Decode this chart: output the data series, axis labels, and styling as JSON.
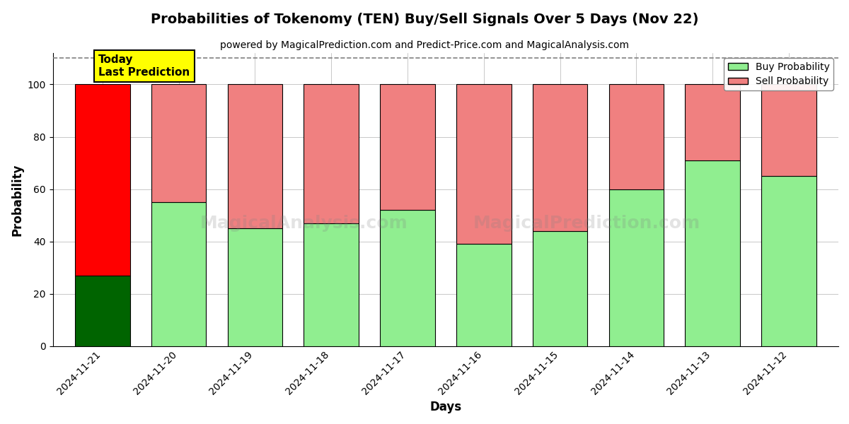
{
  "title": "Probabilities of Tokenomy (TEN) Buy/Sell Signals Over 5 Days (Nov 22)",
  "subtitle": "powered by MagicalPrediction.com and Predict-Price.com and MagicalAnalysis.com",
  "xlabel": "Days",
  "ylabel": "Probability",
  "categories": [
    "2024-11-21",
    "2024-11-20",
    "2024-11-19",
    "2024-11-18",
    "2024-11-17",
    "2024-11-16",
    "2024-11-15",
    "2024-11-14",
    "2024-11-13",
    "2024-11-12"
  ],
  "buy_values": [
    27,
    55,
    45,
    47,
    52,
    39,
    44,
    60,
    71,
    65
  ],
  "sell_values": [
    73,
    45,
    55,
    53,
    48,
    61,
    56,
    40,
    29,
    35
  ],
  "buy_color_special": "#006400",
  "sell_color_special": "#ff0000",
  "buy_color_normal": "#90ee90",
  "sell_color_normal": "#f08080",
  "today_label": "Today\nLast Prediction",
  "today_bg": "#ffff00",
  "legend_buy_label": "Buy Probability",
  "legend_sell_label": "Sell Probability",
  "ylim": [
    0,
    112
  ],
  "yticks": [
    0,
    20,
    40,
    60,
    80,
    100
  ],
  "dashed_line_y": 110,
  "background_color": "#ffffff",
  "bar_width": 0.72
}
